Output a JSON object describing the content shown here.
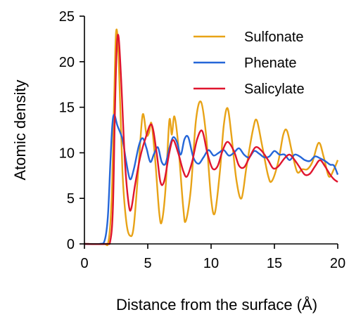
{
  "chart_data": {
    "type": "line",
    "xlabel": "Distance from the surface (Å)",
    "ylabel": "Atomic density",
    "xlim": [
      0,
      20
    ],
    "ylim": [
      0,
      25
    ],
    "xticks": [
      "0",
      "5",
      "10",
      "15",
      "20"
    ],
    "yticks": [
      "0",
      "5",
      "10",
      "15",
      "20",
      "25"
    ],
    "legend_position": "top-right",
    "grid": false,
    "series": [
      {
        "name": "Sulfonate",
        "color": "#e8a317",
        "points": [
          [
            0,
            0
          ],
          [
            1.5,
            0
          ],
          [
            1.9,
            0.3
          ],
          [
            2.15,
            5
          ],
          [
            2.35,
            16
          ],
          [
            2.5,
            23.3
          ],
          [
            2.7,
            20.5
          ],
          [
            3.0,
            8
          ],
          [
            3.3,
            2.5
          ],
          [
            3.6,
            0.9
          ],
          [
            3.9,
            2
          ],
          [
            4.3,
            9
          ],
          [
            4.6,
            14.2
          ],
          [
            4.9,
            12
          ],
          [
            5.1,
            12.2
          ],
          [
            5.3,
            13.2
          ],
          [
            5.6,
            9
          ],
          [
            5.9,
            3.5
          ],
          [
            6.1,
            2.4
          ],
          [
            6.4,
            6
          ],
          [
            6.7,
            13.5
          ],
          [
            6.9,
            12
          ],
          [
            7.1,
            14
          ],
          [
            7.4,
            11
          ],
          [
            7.8,
            4
          ],
          [
            8.0,
            2.5
          ],
          [
            8.4,
            6
          ],
          [
            8.8,
            13.5
          ],
          [
            9.2,
            15.6
          ],
          [
            9.6,
            12
          ],
          [
            10.0,
            5
          ],
          [
            10.3,
            3.4
          ],
          [
            10.7,
            8
          ],
          [
            11.0,
            13
          ],
          [
            11.3,
            14.9
          ],
          [
            11.6,
            12
          ],
          [
            12.0,
            7
          ],
          [
            12.4,
            5
          ],
          [
            12.8,
            8.5
          ],
          [
            13.3,
            12.5
          ],
          [
            13.6,
            13.6
          ],
          [
            14.0,
            11
          ],
          [
            14.5,
            7.5
          ],
          [
            14.8,
            6.9
          ],
          [
            15.3,
            9
          ],
          [
            15.7,
            12
          ],
          [
            16.0,
            12.4
          ],
          [
            16.4,
            10
          ],
          [
            16.8,
            7.9
          ],
          [
            17.2,
            8.2
          ],
          [
            17.6,
            8.2
          ],
          [
            18.0,
            9
          ],
          [
            18.5,
            11.1
          ],
          [
            18.9,
            9.5
          ],
          [
            19.3,
            7.4
          ],
          [
            19.7,
            8.2
          ],
          [
            20.0,
            9.2
          ]
        ]
      },
      {
        "name": "Phenate",
        "color": "#2566d8",
        "points": [
          [
            0,
            0
          ],
          [
            1.2,
            0
          ],
          [
            1.6,
            0.4
          ],
          [
            1.85,
            3
          ],
          [
            2.05,
            9
          ],
          [
            2.2,
            13
          ],
          [
            2.35,
            14.2
          ],
          [
            2.6,
            13
          ],
          [
            3.0,
            11.5
          ],
          [
            3.3,
            9
          ],
          [
            3.6,
            7.1
          ],
          [
            3.9,
            8.2
          ],
          [
            4.3,
            10.8
          ],
          [
            4.6,
            11.6
          ],
          [
            4.9,
            10.5
          ],
          [
            5.2,
            9
          ],
          [
            5.5,
            9.9
          ],
          [
            5.8,
            10.6
          ],
          [
            6.1,
            9
          ],
          [
            6.4,
            8.8
          ],
          [
            6.7,
            10.5
          ],
          [
            7.0,
            11.7
          ],
          [
            7.3,
            11.2
          ],
          [
            7.6,
            9.8
          ],
          [
            7.9,
            11.5
          ],
          [
            8.2,
            11.7
          ],
          [
            8.6,
            9.5
          ],
          [
            9.0,
            8.8
          ],
          [
            9.4,
            9.5
          ],
          [
            9.8,
            10.3
          ],
          [
            10.2,
            9.7
          ],
          [
            10.6,
            10
          ],
          [
            11.0,
            10.3
          ],
          [
            11.4,
            9.7
          ],
          [
            11.8,
            10
          ],
          [
            12.2,
            10.5
          ],
          [
            12.6,
            9.8
          ],
          [
            13.0,
            9.5
          ],
          [
            13.4,
            10.2
          ],
          [
            13.8,
            9.9
          ],
          [
            14.2,
            9.5
          ],
          [
            14.6,
            9.6
          ],
          [
            15.0,
            10.2
          ],
          [
            15.4,
            9.8
          ],
          [
            15.8,
            9.8
          ],
          [
            16.2,
            9.2
          ],
          [
            16.6,
            9.8
          ],
          [
            17.0,
            9.6
          ],
          [
            17.4,
            9.2
          ],
          [
            17.8,
            9.1
          ],
          [
            18.2,
            9.6
          ],
          [
            18.6,
            9.4
          ],
          [
            19.0,
            9.1
          ],
          [
            19.4,
            8.7
          ],
          [
            19.7,
            8.6
          ],
          [
            20.0,
            7.6
          ]
        ]
      },
      {
        "name": "Salicylate",
        "color": "#e0152e",
        "points": [
          [
            0,
            0
          ],
          [
            1.7,
            0
          ],
          [
            2.05,
            0.4
          ],
          [
            2.25,
            4
          ],
          [
            2.4,
            14
          ],
          [
            2.55,
            21.5
          ],
          [
            2.7,
            22.7
          ],
          [
            2.9,
            18
          ],
          [
            3.2,
            9
          ],
          [
            3.5,
            4.3
          ],
          [
            3.7,
            3.9
          ],
          [
            4.0,
            6.5
          ],
          [
            4.4,
            9.5
          ],
          [
            4.8,
            11.5
          ],
          [
            5.3,
            13.1
          ],
          [
            5.7,
            10
          ],
          [
            6.0,
            6.8
          ],
          [
            6.3,
            6.9
          ],
          [
            6.7,
            10
          ],
          [
            7.0,
            11.4
          ],
          [
            7.4,
            10
          ],
          [
            7.8,
            8
          ],
          [
            8.1,
            7.4
          ],
          [
            8.5,
            9
          ],
          [
            8.9,
            11.5
          ],
          [
            9.3,
            12.4
          ],
          [
            9.7,
            10
          ],
          [
            10.1,
            8.3
          ],
          [
            10.5,
            8.5
          ],
          [
            10.9,
            10.2
          ],
          [
            11.3,
            11.2
          ],
          [
            11.8,
            10.2
          ],
          [
            12.2,
            8.6
          ],
          [
            12.6,
            8.4
          ],
          [
            13.0,
            9.4
          ],
          [
            13.5,
            10.6
          ],
          [
            14.0,
            10.2
          ],
          [
            14.5,
            9.2
          ],
          [
            14.9,
            8.3
          ],
          [
            15.3,
            8.5
          ],
          [
            15.8,
            9.4
          ],
          [
            16.2,
            9.8
          ],
          [
            16.6,
            9.2
          ],
          [
            17.0,
            8.4
          ],
          [
            17.4,
            7.6
          ],
          [
            17.8,
            7.7
          ],
          [
            18.2,
            8.5
          ],
          [
            18.6,
            9.2
          ],
          [
            19.0,
            8.5
          ],
          [
            19.4,
            7.6
          ],
          [
            19.7,
            7.1
          ],
          [
            20.0,
            6.8
          ]
        ]
      }
    ]
  }
}
